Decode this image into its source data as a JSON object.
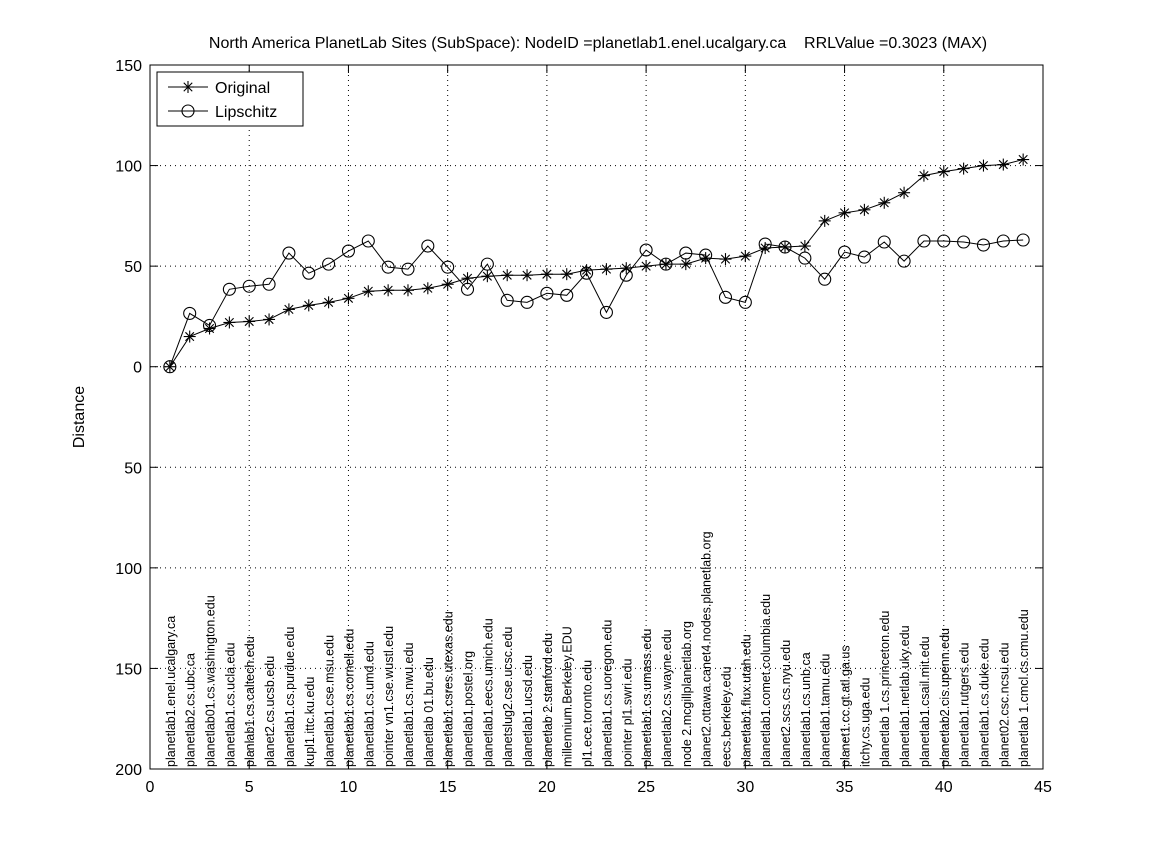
{
  "chart_data": {
    "type": "line",
    "title": "North America PlanetLab Sites (SubSpace): NodeID =planetlab1.enel.ucalgary.ca    RRLValue =0.3023 (MAX)",
    "xlabel": "",
    "ylabel": "Distance",
    "xlim": [
      0,
      45
    ],
    "ylim": [
      -200,
      150
    ],
    "x_ticks": [
      0,
      5,
      10,
      15,
      20,
      25,
      30,
      35,
      40,
      45
    ],
    "y_ticks": [
      150,
      100,
      50,
      0,
      -50,
      -100,
      -150,
      -200
    ],
    "y_tick_labels": [
      "150",
      "100",
      "50",
      "0",
      "50",
      "100",
      "150",
      "200"
    ],
    "grid": true,
    "legend_position": "top-left",
    "x": [
      1,
      2,
      3,
      4,
      5,
      6,
      7,
      8,
      9,
      10,
      11,
      12,
      13,
      14,
      15,
      16,
      17,
      18,
      19,
      20,
      21,
      22,
      23,
      24,
      25,
      26,
      27,
      28,
      29,
      30,
      31,
      32,
      33,
      34,
      35,
      36,
      37,
      38,
      39,
      40,
      41,
      42,
      43,
      44
    ],
    "series": [
      {
        "name": "Original",
        "marker": "asterisk",
        "values": [
          0,
          15,
          19,
          22,
          22.5,
          23.5,
          28.5,
          30.5,
          32,
          34,
          37.5,
          38,
          38,
          39,
          41,
          44,
          45,
          45.5,
          45.5,
          46,
          46,
          48,
          48.5,
          49,
          50,
          51,
          51,
          54,
          53.5,
          55,
          59,
          59.5,
          60,
          72.5,
          76.5,
          78,
          81.5,
          86.5,
          95,
          97,
          98.5,
          100,
          100.5,
          103
        ]
      },
      {
        "name": "Lipschitz",
        "marker": "circle",
        "values": [
          0,
          26.5,
          20.5,
          38.5,
          40,
          41,
          56.5,
          46.5,
          51,
          57.5,
          62.5,
          49.5,
          48.5,
          60,
          49.5,
          38.5,
          51,
          33,
          32,
          36.5,
          35.5,
          46.5,
          27,
          45.5,
          58,
          51,
          56.5,
          55.5,
          34.5,
          32,
          61,
          59.5,
          54,
          43.5,
          57,
          54.5,
          62,
          52.5,
          62.5,
          62.5,
          62,
          60.5,
          62.5,
          63
        ]
      }
    ],
    "node_labels": [
      "planetlab1.enel.ucalgary.ca",
      "planetlab2.cs.ubc.ca",
      "planetlab01.cs.washington.edu",
      "planetlab1.cs.ucla.edu",
      "planlab1.cs.caltech.edu",
      "planet2.cs.ucsb.edu",
      "planetlab1.cs.purdue.edu",
      "kupl1.ittc.ku.edu",
      "planetlab1.cse.msu.edu",
      "planetlab1.cs.cornell.edu",
      "planetlab1.cs.umd.edu",
      "pointer vn1.cse.wustl.edu",
      "planetlab1.cs.nwu.edu",
      "planetlab 01.bu.edu",
      "planetlab1.csres.utexas.edu",
      "planetlab1.postel.org",
      "planetlab1.eecs.umich.edu",
      "planetslug2.cse.ucsc.edu",
      "planetlab1.ucsd.edu",
      "planetlab 2.stanford.edu",
      "millennium.Berkeley.EDU",
      "pl1.ece.toronto.edu",
      "planetlab1.cs.uoregon.edu",
      "pointer pl1.swri.edu",
      "planetlab1.cs.umass.edu",
      "planetlab2.cs.wayne.edu",
      "node 2.mcgillplanetlab.org",
      "planet2.ottawa.canet4.nodes.planetlab.org",
      "eecs.berkeley.edu",
      "planetlab1.flux.utah.edu",
      "planetlab1.comet.columbia.edu",
      "planet2.scs.cs.nyu.edu",
      "planetlab1.cs.unb.ca",
      "planetlab1.tamu.edu",
      "planet1.cc.gt.atl.ga.us",
      "itchy.cs.uga.edu",
      "planetlab 1.cs.princeton.edu",
      "planetlab1.netlab.uky.edu",
      "planetlab1.csail.mit.edu",
      "planetlab2.cis.upenn.edu",
      "planetlab1.rutgers.edu",
      "planetlab1.cs.duke.edu",
      "planet02.csc.ncsu.edu",
      "planetlab 1.cmcl.cs.cmu.edu"
    ]
  }
}
